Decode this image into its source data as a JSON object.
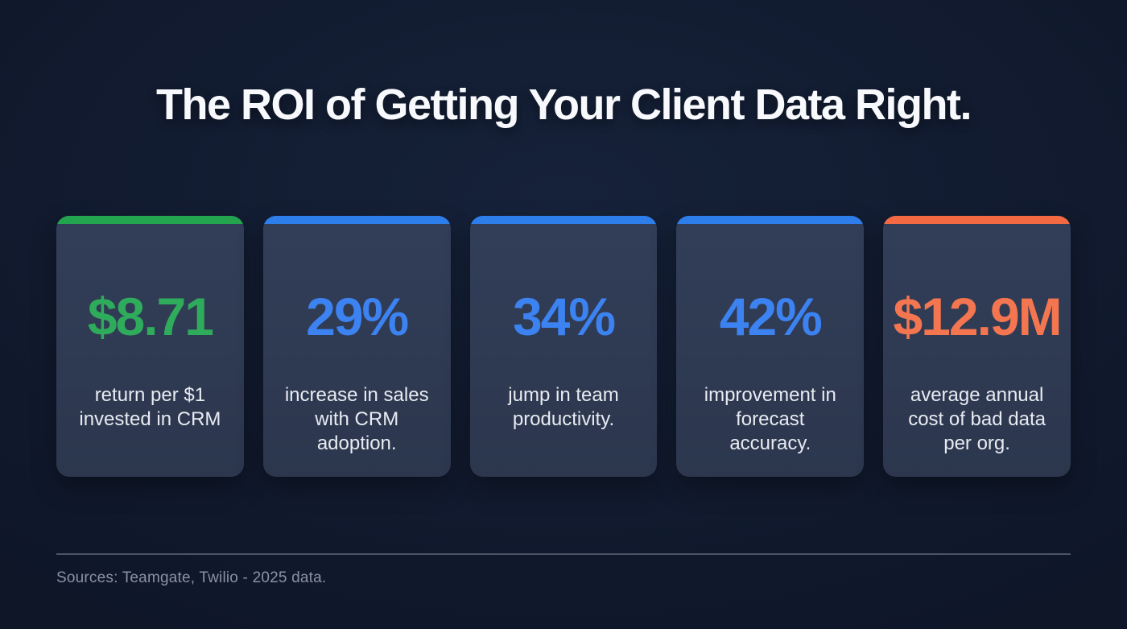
{
  "title": "The ROI of Getting Your Client Data Right.",
  "cards": [
    {
      "value": "$8.71",
      "description_lines": [
        "return per $1",
        "invested in CRM"
      ],
      "accent_color": "#23a44e",
      "value_color": "#2fab5c"
    },
    {
      "value": "29%",
      "description_lines": [
        "increase in sales",
        "with CRM",
        "adoption."
      ],
      "accent_color": "#2d7eeb",
      "value_color": "#3c82f0"
    },
    {
      "value": "34%",
      "description_lines": [
        "jump in team",
        "productivity."
      ],
      "accent_color": "#2d7eeb",
      "value_color": "#3c82f0"
    },
    {
      "value": "42%",
      "description_lines": [
        "improvement in",
        "forecast",
        "accuracy."
      ],
      "accent_color": "#2d7eeb",
      "value_color": "#3c82f0"
    },
    {
      "value": "$12.9M",
      "description_lines": [
        "average annual",
        "cost of bad data",
        "per org."
      ],
      "accent_color": "#f26942",
      "value_color": "#f47650"
    }
  ],
  "footer": {
    "sources": "Sources: Teamgate, Twilio - 2025 data."
  },
  "colors": {
    "background": "#111a2e",
    "card_background": "#2e3950",
    "title_text": "#f7f9fc",
    "description_text": "#e8ebf1",
    "divider": "#4a5568",
    "footer_text": "#8a92a2"
  }
}
